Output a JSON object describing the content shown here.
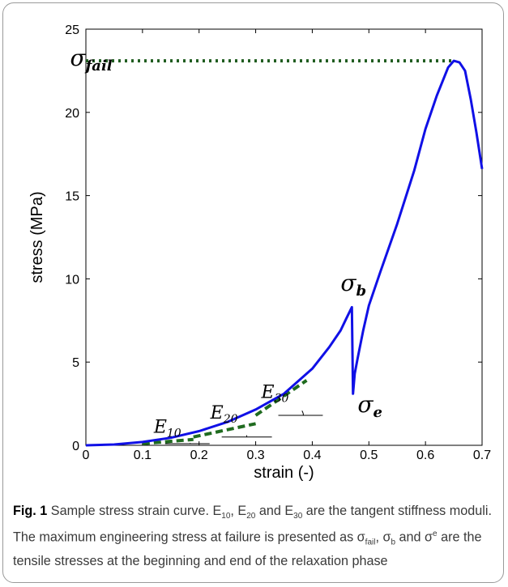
{
  "chart_data": {
    "type": "line",
    "xlabel": "strain (-)",
    "ylabel": "stress (MPa)",
    "xlim": [
      0,
      0.7
    ],
    "ylim": [
      0,
      25
    ],
    "x_ticks": [
      "0",
      "0.1",
      "0.2",
      "0.3",
      "0.4",
      "0.5",
      "0.6",
      "0.7"
    ],
    "y_ticks": [
      "0",
      "5",
      "10",
      "15",
      "20",
      "25"
    ],
    "grid": false,
    "series": [
      {
        "color": "#1010e6",
        "style": "solid",
        "x": [
          0,
          0.05,
          0.1,
          0.15,
          0.2,
          0.25,
          0.3,
          0.35,
          0.4,
          0.43,
          0.45,
          0.46,
          0.47,
          0.472,
          0.475,
          0.48,
          0.49,
          0.5,
          0.52,
          0.55,
          0.58,
          0.6,
          0.62,
          0.64,
          0.65,
          0.66,
          0.67,
          0.68,
          0.69,
          0.7
        ],
        "y": [
          0,
          0.05,
          0.2,
          0.45,
          0.85,
          1.4,
          2.15,
          3.1,
          4.6,
          5.9,
          6.9,
          7.6,
          8.3,
          3.1,
          4.3,
          5.2,
          6.9,
          8.4,
          10.4,
          13.3,
          16.5,
          19.0,
          21.0,
          22.7,
          23.1,
          23.0,
          22.5,
          20.8,
          18.8,
          16.6
        ]
      }
    ],
    "failure_line": {
      "y": 23.1,
      "x": [
        0,
        0.65
      ],
      "color": "#1f5c1f",
      "style": "dotted"
    },
    "tangents": [
      {
        "label": "E",
        "sub": "10",
        "x": [
          0.1,
          0.19
        ],
        "y": [
          0.1,
          0.35
        ]
      },
      {
        "label": "E",
        "sub": "20",
        "x": [
          0.19,
          0.3
        ],
        "y": [
          0.5,
          1.3
        ]
      },
      {
        "label": "E",
        "sub": "30",
        "x": [
          0.3,
          0.39
        ],
        "y": [
          1.8,
          3.9
        ]
      }
    ],
    "annotations": [
      {
        "label": "σ",
        "sub": "fail",
        "x": -0.028,
        "y": 22.8
      },
      {
        "label": "σ",
        "sub": "b",
        "x": 0.45,
        "y": 9.3
      },
      {
        "label": "σ",
        "sub": "e",
        "x": 0.48,
        "y": 2.0
      },
      {
        "label": "E",
        "sub": "10",
        "x": 0.12,
        "y": 0.75
      },
      {
        "label": "E",
        "sub": "20",
        "x": 0.22,
        "y": 1.6
      },
      {
        "label": "E",
        "sub": "30",
        "x": 0.31,
        "y": 2.85
      }
    ]
  },
  "caption": {
    "label": "Fig. 1",
    "t1": " Sample stress strain curve. E",
    "s1": "10",
    "t2": ", E",
    "s2": "20",
    "t3": " and E",
    "s3": "30",
    "t4": " are the tangent stiffness moduli. The maximum engineering stress at failure is presented as σ",
    "s4": "fail",
    "t5": ", σ",
    "s5": "b",
    "t6": " and σ",
    "s6": "e",
    "t7": " are the tensile stresses at the beginning and end of the relaxation phase"
  }
}
